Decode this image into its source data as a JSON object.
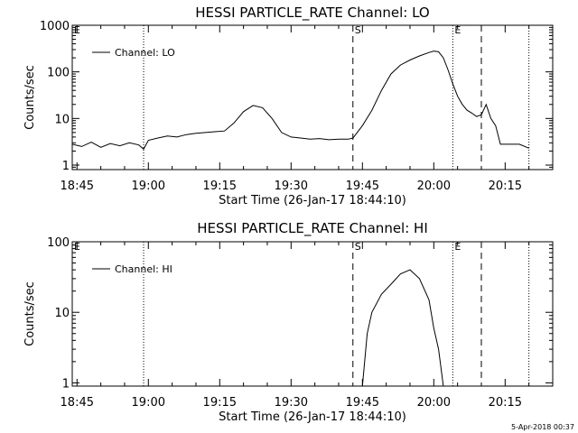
{
  "footer": {
    "timestamp": "5-Apr-2018 00:37"
  },
  "chart_data": [
    {
      "type": "line",
      "title": "HESSI PARTICLE_RATE Channel: LO",
      "xlabel": "Start Time (26-Jan-17 18:44:10)",
      "ylabel": "Counts/sec",
      "yscale": "log",
      "xlim": [
        "18:44",
        "20:25"
      ],
      "ylim": [
        0.8,
        1000
      ],
      "x_ticks": [
        "18:45",
        "19:00",
        "19:15",
        "19:30",
        "19:45",
        "20:00",
        "20:15"
      ],
      "y_ticks": [
        "1",
        "10",
        "100",
        "1000"
      ],
      "legend": {
        "label": "Channel: LO",
        "position": "top-left"
      },
      "markers": [
        {
          "label": "E",
          "time": "18:44",
          "style": "dotted"
        },
        {
          "label": "",
          "time": "18:59",
          "style": "dotted"
        },
        {
          "label": "S",
          "time": "19:43",
          "style": "dashed"
        },
        {
          "label": "E",
          "time": "20:04",
          "style": "dotted"
        },
        {
          "label": "",
          "time": "20:10",
          "style": "dashed"
        },
        {
          "label": "",
          "time": "20:20",
          "style": "dotted"
        }
      ],
      "series": [
        {
          "name": "Channel: LO",
          "x": [
            "18:44",
            "18:46",
            "18:48",
            "18:50",
            "18:52",
            "18:54",
            "18:56",
            "18:58",
            "18:59",
            "19:00",
            "19:02",
            "19:04",
            "19:06",
            "19:08",
            "19:10",
            "19:12",
            "19:14",
            "19:16",
            "19:18",
            "19:20",
            "19:22",
            "19:24",
            "19:26",
            "19:28",
            "19:30",
            "19:32",
            "19:34",
            "19:36",
            "19:38",
            "19:40",
            "19:42",
            "19:43",
            "19:45",
            "19:47",
            "19:49",
            "19:51",
            "19:53",
            "19:55",
            "19:57",
            "19:59",
            "20:00",
            "20:01",
            "20:02",
            "20:03",
            "20:04",
            "20:05",
            "20:06",
            "20:07",
            "20:08",
            "20:09",
            "20:10",
            "20:11",
            "20:12",
            "20:13",
            "20:14",
            "20:16",
            "20:18",
            "20:20"
          ],
          "values": [
            2.8,
            2.5,
            3.1,
            2.4,
            2.9,
            2.6,
            3.0,
            2.7,
            2.2,
            3.4,
            3.8,
            4.2,
            4.0,
            4.5,
            4.8,
            5.0,
            5.2,
            5.4,
            8,
            14,
            19,
            17,
            10,
            5,
            4,
            3.8,
            3.6,
            3.7,
            3.5,
            3.6,
            3.6,
            3.8,
            7,
            15,
            40,
            90,
            140,
            180,
            220,
            260,
            280,
            270,
            200,
            110,
            55,
            30,
            20,
            15,
            13,
            11,
            12,
            20,
            10,
            7,
            2.8,
            2.8,
            2.8,
            2.3
          ]
        }
      ]
    },
    {
      "type": "line",
      "title": "HESSI PARTICLE_RATE Channel: HI",
      "xlabel": "Start Time (26-Jan-17 18:44:10)",
      "ylabel": "Counts/sec",
      "yscale": "log",
      "xlim": [
        "18:44",
        "20:25"
      ],
      "ylim": [
        0.9,
        100
      ],
      "x_ticks": [
        "18:45",
        "19:00",
        "19:15",
        "19:30",
        "19:45",
        "20:00",
        "20:15"
      ],
      "y_ticks": [
        "1",
        "10",
        "100"
      ],
      "legend": {
        "label": "Channel: HI",
        "position": "top-left"
      },
      "markers": [
        {
          "label": "E",
          "time": "18:44",
          "style": "dotted"
        },
        {
          "label": "",
          "time": "18:59",
          "style": "dotted"
        },
        {
          "label": "S",
          "time": "19:43",
          "style": "dashed"
        },
        {
          "label": "E",
          "time": "20:04",
          "style": "dotted"
        },
        {
          "label": "",
          "time": "20:10",
          "style": "dashed"
        },
        {
          "label": "",
          "time": "20:20",
          "style": "dotted"
        }
      ],
      "series": [
        {
          "name": "Channel: HI",
          "x": [
            "19:45",
            "19:46",
            "19:47",
            "19:49",
            "19:51",
            "19:53",
            "19:55",
            "19:57",
            "19:59",
            "20:00",
            "20:01",
            "20:02"
          ],
          "values": [
            0.9,
            5,
            10,
            18,
            25,
            35,
            40,
            30,
            15,
            6,
            3,
            0.9
          ]
        }
      ]
    }
  ]
}
